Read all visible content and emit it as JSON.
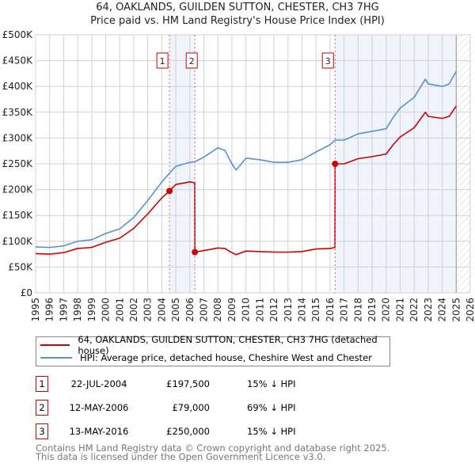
{
  "chart_data": {
    "type": "line",
    "title": "64, OAKLANDS, GUILDEN SUTTON, CHESTER, CH3 7HG",
    "subtitle": "Price paid vs. HM Land Registry's House Price Index (HPI)",
    "xlim": [
      1995,
      2026
    ],
    "ylim": [
      0,
      500000
    ],
    "x_ticks": [
      "1995",
      "1996",
      "1997",
      "1998",
      "1999",
      "2000",
      "2001",
      "2002",
      "2003",
      "2004",
      "2005",
      "2006",
      "2007",
      "2008",
      "2009",
      "2010",
      "2011",
      "2012",
      "2013",
      "2014",
      "2015",
      "2016",
      "2017",
      "2018",
      "2019",
      "2020",
      "2021",
      "2022",
      "2023",
      "2024",
      "2025",
      "2026"
    ],
    "y_ticks": [
      {
        "value": 0,
        "label": "£0"
      },
      {
        "value": 50000,
        "label": "£50K"
      },
      {
        "value": 100000,
        "label": "£100K"
      },
      {
        "value": 150000,
        "label": "£150K"
      },
      {
        "value": 200000,
        "label": "£200K"
      },
      {
        "value": 250000,
        "label": "£250K"
      },
      {
        "value": 300000,
        "label": "£300K"
      },
      {
        "value": 350000,
        "label": "£350K"
      },
      {
        "value": 400000,
        "label": "£400K"
      },
      {
        "value": 450000,
        "label": "£450K"
      },
      {
        "value": 500000,
        "label": "£500K"
      }
    ],
    "grid": true,
    "series": [
      {
        "name": "64, OAKLANDS, GUILDEN SUTTON, CHESTER, CH3 7HG (detached house)",
        "color": "#cc0000",
        "x": [
          1995,
          1996,
          1997,
          1998,
          1999,
          2000,
          2001,
          2002,
          2003,
          2004,
          2004.55,
          2005,
          2006,
          2006.35,
          2006.36,
          2007,
          2008,
          2008.5,
          2009,
          2009.3,
          2010,
          2011,
          2012,
          2013,
          2014,
          2015,
          2016,
          2016.35,
          2016.36,
          2017,
          2018,
          2019,
          2020,
          2020.5,
          2021,
          2022,
          2022.8,
          2023,
          2024,
          2024.5,
          2025
        ],
        "y": [
          76000,
          75000,
          78000,
          86000,
          88000,
          98000,
          106000,
          125000,
          153000,
          184000,
          197500,
          210000,
          215000,
          213000,
          79000,
          82000,
          87000,
          86000,
          78000,
          74000,
          81000,
          80000,
          79000,
          79000,
          80000,
          85000,
          86000,
          88000,
          250000,
          250000,
          260000,
          264000,
          269000,
          287000,
          302000,
          320000,
          350000,
          342000,
          338000,
          342000,
          362000
        ]
      },
      {
        "name": "HPI: Average price, detached house, Cheshire West and Chester",
        "color": "#5b8fd4",
        "x": [
          1995,
          1996,
          1997,
          1998,
          1999,
          2000,
          2001,
          2002,
          2003,
          2004,
          2004.55,
          2005,
          2006,
          2006.36,
          2007,
          2008,
          2008.5,
          2009,
          2009.3,
          2010,
          2011,
          2012,
          2013,
          2014,
          2015,
          2016,
          2016.36,
          2017,
          2018,
          2019,
          2020,
          2020.5,
          2021,
          2022,
          2022.8,
          2023,
          2024,
          2024.5,
          2025
        ],
        "y": [
          89000,
          88000,
          91000,
          100000,
          103000,
          115000,
          124000,
          146000,
          179000,
          215000,
          232000,
          245000,
          253000,
          254000,
          263000,
          281000,
          276000,
          250000,
          238000,
          261000,
          258000,
          253000,
          253000,
          258000,
          273000,
          287000,
          296000,
          296000,
          308000,
          313000,
          318000,
          340000,
          358000,
          379000,
          414000,
          405000,
          400000,
          405000,
          429000
        ]
      }
    ],
    "sales": [
      {
        "id": "1",
        "x": 2004.55,
        "date": "22-JUL-2004",
        "price": 197500,
        "price_label": "£197,500",
        "hpi_label": "15% ↓ HPI"
      },
      {
        "id": "2",
        "x": 2006.36,
        "date": "12-MAY-2006",
        "price": 79000,
        "price_label": "£79,000",
        "hpi_label": "69% ↓ HPI"
      },
      {
        "id": "3",
        "x": 2016.36,
        "date": "13-MAY-2016",
        "price": 250000,
        "price_label": "£250,000",
        "hpi_label": "15% ↓ HPI"
      }
    ],
    "shaded_ranges": [
      [
        2004.55,
        2006.36
      ],
      [
        2016.36,
        2025
      ]
    ],
    "forecast_hatch_from": 2025,
    "legend_position": "bottom"
  },
  "footer": {
    "line1": "Contains HM Land Registry data © Crown copyright and database right 2025.",
    "line2": "This data is licensed under the Open Government Licence v3.0."
  }
}
